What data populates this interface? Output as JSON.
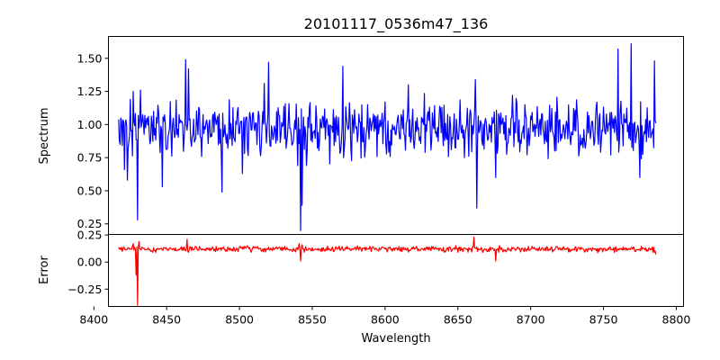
{
  "chart_data": [
    {
      "id": "spectrum",
      "type": "line",
      "title": "20101117_0536m47_136",
      "xlabel": "",
      "ylabel": "Spectrum",
      "xlim": [
        8410,
        8805
      ],
      "ylim": [
        0.17,
        1.665
      ],
      "yticks": [
        0.25,
        0.5,
        0.75,
        1.0,
        1.25,
        1.5
      ],
      "ytick_labels": [
        "0.25",
        "0.50",
        "0.75",
        "1.00",
        "1.25",
        "1.50"
      ],
      "grid": false,
      "color": "#0000ff",
      "series": [
        {
          "name": "Spectrum",
          "x_start": 8417,
          "x_end": 8786,
          "baseline": 0.97,
          "noise_amplitude": 0.2,
          "features": [
            {
              "x": 8418,
              "y": 0.85
            },
            {
              "x": 8421,
              "y": 0.66
            },
            {
              "x": 8423,
              "y": 0.58
            },
            {
              "x": 8425,
              "y": 1.19
            },
            {
              "x": 8427,
              "y": 1.25
            },
            {
              "x": 8430,
              "y": 0.28
            },
            {
              "x": 8432,
              "y": 1.26
            },
            {
              "x": 8447,
              "y": 0.53
            },
            {
              "x": 8463,
              "y": 1.49
            },
            {
              "x": 8465,
              "y": 1.42
            },
            {
              "x": 8488,
              "y": 0.49
            },
            {
              "x": 8502,
              "y": 0.63
            },
            {
              "x": 8517,
              "y": 1.31
            },
            {
              "x": 8520,
              "y": 1.47
            },
            {
              "x": 8535,
              "y": 0.97
            },
            {
              "x": 8540,
              "y": 0.69
            },
            {
              "x": 8542,
              "y": 0.2
            },
            {
              "x": 8543,
              "y": 0.39
            },
            {
              "x": 8546,
              "y": 0.69
            },
            {
              "x": 8571,
              "y": 1.44
            },
            {
              "x": 8616,
              "y": 1.3
            },
            {
              "x": 8662,
              "y": 1.34
            },
            {
              "x": 8663,
              "y": 0.37
            },
            {
              "x": 8676,
              "y": 0.6
            },
            {
              "x": 8760,
              "y": 1.57
            },
            {
              "x": 8769,
              "y": 1.61
            },
            {
              "x": 8775,
              "y": 0.6
            },
            {
              "x": 8782,
              "y": 1.03
            },
            {
              "x": 8785,
              "y": 1.48
            }
          ]
        }
      ]
    },
    {
      "id": "error",
      "type": "line",
      "title": "",
      "xlabel": "Wavelength",
      "ylabel": "Error",
      "xlim": [
        8410,
        8805
      ],
      "ylim": [
        -0.41,
        0.255
      ],
      "xticks": [
        8400,
        8450,
        8500,
        8550,
        8600,
        8650,
        8700,
        8750,
        8800
      ],
      "xtick_labels": [
        "8400",
        "8450",
        "8500",
        "8550",
        "8600",
        "8650",
        "8700",
        "8750",
        "8800"
      ],
      "yticks": [
        -0.25,
        0.0,
        0.25
      ],
      "ytick_labels": [
        "−0.25",
        "0.00",
        "0.25"
      ],
      "grid": false,
      "color": "#ff0000",
      "series": [
        {
          "name": "Error",
          "x_start": 8417,
          "x_end": 8786,
          "baseline": 0.12,
          "noise_amplitude": 0.025,
          "features": [
            {
              "x": 8418,
              "y": 0.13
            },
            {
              "x": 8427,
              "y": 0.17
            },
            {
              "x": 8429,
              "y": -0.12
            },
            {
              "x": 8430,
              "y": -0.4
            },
            {
              "x": 8431,
              "y": 0.19
            },
            {
              "x": 8464,
              "y": 0.21
            },
            {
              "x": 8465,
              "y": 0.09
            },
            {
              "x": 8541,
              "y": 0.17
            },
            {
              "x": 8542,
              "y": 0.01
            },
            {
              "x": 8543,
              "y": 0.16
            },
            {
              "x": 8661,
              "y": 0.23
            },
            {
              "x": 8663,
              "y": 0.14
            },
            {
              "x": 8674,
              "y": 0.13
            },
            {
              "x": 8676,
              "y": 0.01
            },
            {
              "x": 8678,
              "y": 0.09
            },
            {
              "x": 8784,
              "y": 0.09
            },
            {
              "x": 8786,
              "y": 0.07
            }
          ]
        }
      ]
    }
  ]
}
